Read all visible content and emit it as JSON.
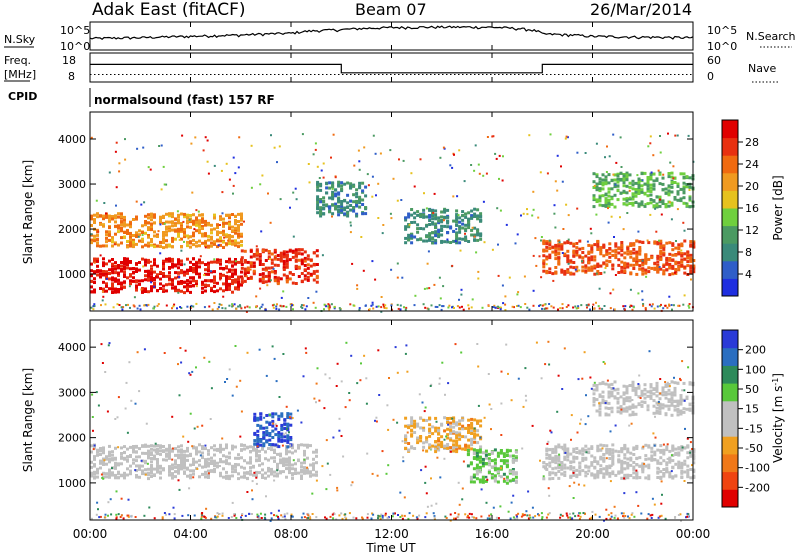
{
  "header": {
    "station": "Adak East (fitACF)",
    "beam": "Beam 07",
    "date": "26/Mar/2014"
  },
  "upper_panels": {
    "nsky_label": "N.Sky",
    "nsky_ticks": [
      "10^5",
      "10^0"
    ],
    "nsearch_label": "N.Search",
    "nsearch_ticks": [
      "10^5",
      "10^0"
    ],
    "freq_label_line1": "Freq.",
    "freq_label_line2": "[MHz]",
    "freq_ticks": [
      "18",
      "8"
    ],
    "nave_label": "Nave",
    "nave_ticks": [
      "60",
      "0"
    ],
    "cpid_label": "CPID",
    "cpid_text": "normalsound (fast) 157 RF"
  },
  "colors": {
    "power_scale": [
      "#1f2fe0",
      "#2f5ec8",
      "#3a8a7a",
      "#4b9a62",
      "#6fcf3e",
      "#e6c21e",
      "#f09a20",
      "#f06a10",
      "#e83010",
      "#e00000"
    ],
    "velocity_scale": [
      "#2a3ad8",
      "#2a6ec0",
      "#2d8a5a",
      "#58c83a",
      "#c0c0c0",
      "#c0c0c0",
      "#f0a020",
      "#f07818",
      "#f04410",
      "#e00000"
    ]
  },
  "chart_data": [
    {
      "type": "line",
      "title": "N.Sky / N.Search",
      "x": [
        "00:00",
        "02:00",
        "04:00",
        "06:00",
        "08:00",
        "10:00",
        "12:00",
        "14:00",
        "16:00",
        "18:00",
        "20:00",
        "22:00",
        "00:00"
      ],
      "series": [
        {
          "name": "N.Sky",
          "values": [
            100,
            150,
            300,
            600,
            1500,
            10000,
            30000,
            40000,
            35000,
            1000,
            300,
            200,
            150
          ]
        }
      ],
      "ylim": [
        1,
        100000
      ],
      "yscale": "log"
    },
    {
      "type": "line",
      "title": "Freq. [MHz] / Nave",
      "x": [
        "00:00",
        "10:00",
        "10:00",
        "18:00",
        "18:00",
        "24:00"
      ],
      "series": [
        {
          "name": "Freq.",
          "values": [
            14.5,
            14.5,
            11,
            11,
            14.5,
            14.5
          ]
        },
        {
          "name": "Nave",
          "values": [
            18,
            18,
            18,
            18,
            18,
            18
          ]
        }
      ],
      "ylim": [
        8,
        18
      ]
    },
    {
      "type": "heatmap",
      "title": "Power [dB]",
      "ylabel": "Slant Range [km]",
      "xlabel": "Time UT",
      "x_ticks": [
        "00:00",
        "04:00",
        "08:00",
        "12:00",
        "16:00",
        "20:00",
        "00:00"
      ],
      "y_ticks": [
        "1000",
        "2000",
        "3000",
        "4000"
      ],
      "xlim": [
        0,
        24
      ],
      "ylim": [
        180,
        4600
      ],
      "colorbar": {
        "label": "Power [dB]",
        "ticks": [
          "4",
          "8",
          "12",
          "16",
          "20",
          "24",
          "28"
        ],
        "range": [
          0,
          30
        ]
      },
      "features": [
        {
          "t_start": 0,
          "t_end": 6,
          "range_km": 1000,
          "value": 28
        },
        {
          "t_start": 0,
          "t_end": 6,
          "range_km": 2000,
          "value": 20
        },
        {
          "t_start": 6,
          "t_end": 9,
          "range_km": 1200,
          "value": 26
        },
        {
          "t_start": 9,
          "t_end": 11,
          "range_km": 2700,
          "value": 8
        },
        {
          "t_start": 12.5,
          "t_end": 15.5,
          "range_km": 2100,
          "value": 8
        },
        {
          "t_start": 18,
          "t_end": 24,
          "range_km": 1400,
          "value": 24
        },
        {
          "t_start": 20,
          "t_end": 24,
          "range_km": 2900,
          "value": 12
        }
      ]
    },
    {
      "type": "heatmap",
      "title": "Velocity [m s-1]",
      "ylabel": "Slant Range [km]",
      "xlabel": "Time UT",
      "x_ticks": [
        "00:00",
        "04:00",
        "08:00",
        "12:00",
        "16:00",
        "20:00",
        "00:00"
      ],
      "y_ticks": [
        "1000",
        "2000",
        "3000",
        "4000"
      ],
      "xlim": [
        0,
        24
      ],
      "ylim": [
        180,
        4600
      ],
      "colorbar": {
        "label": "Velocity [m s-1]",
        "ticks": [
          "200",
          "100",
          "50",
          "15",
          "-15",
          "-50",
          "-100",
          "-200"
        ],
        "range": [
          -250,
          250
        ]
      },
      "features": [
        {
          "t_start": 0,
          "t_end": 9,
          "range_km": 1500,
          "value": 0
        },
        {
          "t_start": 6.5,
          "t_end": 8,
          "range_km": 2200,
          "value": 200
        },
        {
          "t_start": 12.5,
          "t_end": 15.5,
          "range_km": 2100,
          "value": -60
        },
        {
          "t_start": 15,
          "t_end": 17,
          "range_km": 1400,
          "value": 60
        },
        {
          "t_start": 18,
          "t_end": 24,
          "range_km": 1500,
          "value": 0
        },
        {
          "t_start": 20,
          "t_end": 24,
          "range_km": 2900,
          "value": 0
        }
      ]
    }
  ],
  "axis": {
    "x_ticks": [
      "00:00",
      "04:00",
      "08:00",
      "12:00",
      "16:00",
      "20:00",
      "00:00"
    ],
    "xlabel": "Time UT",
    "y_ticks": [
      "1000",
      "2000",
      "3000",
      "4000"
    ],
    "ylabel": "Slant Range [km]",
    "power_cb_label": "Power [dB]",
    "power_cb_ticks": [
      "4",
      "8",
      "12",
      "16",
      "20",
      "24",
      "28"
    ],
    "vel_cb_label": "Velocity [m s",
    "vel_cb_exp": "-1",
    "vel_cb_end": "]",
    "vel_cb_ticks": [
      "200",
      "100",
      "50",
      "15",
      "-15",
      "-50",
      "-100",
      "-200"
    ]
  }
}
